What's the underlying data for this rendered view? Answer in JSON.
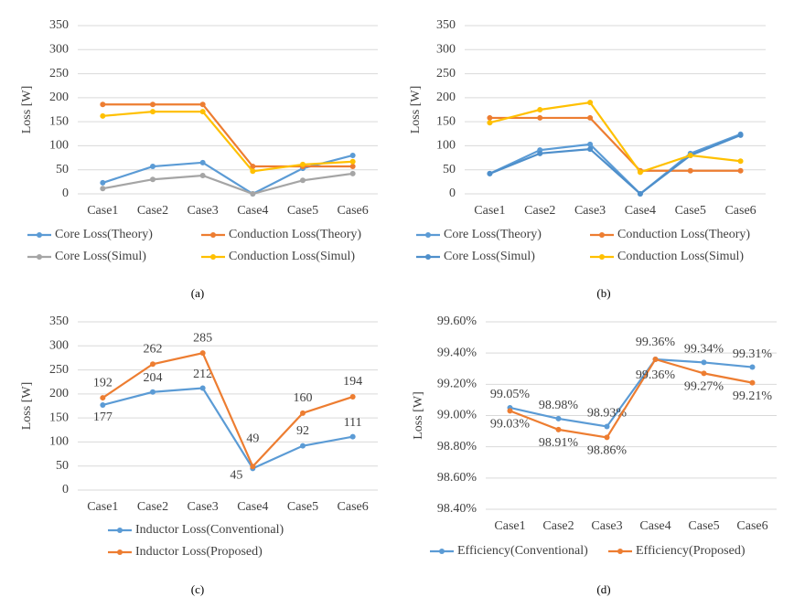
{
  "chart_data": [
    {
      "type": "line",
      "caption": "(a)",
      "y_label": "Loss [W]",
      "categories": [
        "Case1",
        "Case2",
        "Case3",
        "Case4",
        "Case5",
        "Case6"
      ],
      "ylim": [
        0,
        350
      ],
      "yticks": [
        0,
        50,
        100,
        150,
        200,
        250,
        300,
        350
      ],
      "grid": true,
      "series": [
        {
          "name": "Core Loss(Theory)",
          "color": "#5b9bd5",
          "values": [
            23,
            57,
            65,
            0,
            53,
            80
          ]
        },
        {
          "name": "Conduction Loss(Theory)",
          "color": "#ed7d31",
          "values": [
            186,
            186,
            186,
            57,
            57,
            57
          ]
        },
        {
          "name": "Core Loss(Simul)",
          "color": "#a5a5a5",
          "values": [
            11,
            30,
            38,
            0,
            28,
            42
          ]
        },
        {
          "name": "Conduction Loss(Simul)",
          "color": "#ffc000",
          "values": [
            162,
            171,
            171,
            47,
            61,
            67
          ]
        }
      ]
    },
    {
      "type": "line",
      "caption": "(b)",
      "y_label": "Loss [W]",
      "categories": [
        "Case1",
        "Case2",
        "Case3",
        "Case4",
        "Case5",
        "Case6"
      ],
      "ylim": [
        0,
        350
      ],
      "yticks": [
        0,
        50,
        100,
        150,
        200,
        250,
        300,
        350
      ],
      "grid": true,
      "series": [
        {
          "name": "Core Loss(Theory)",
          "color": "#5b9bd5",
          "values": [
            42,
            91,
            103,
            0,
            84,
            124
          ]
        },
        {
          "name": "Conduction Loss(Theory)",
          "color": "#ed7d31",
          "values": [
            158,
            158,
            158,
            48,
            48,
            48
          ]
        },
        {
          "name": "Core Loss(Simul)",
          "color": "#4e8fcb",
          "values": [
            42,
            84,
            93,
            0,
            80,
            122
          ]
        },
        {
          "name": "Conduction Loss(Simul)",
          "color": "#ffc000",
          "values": [
            148,
            175,
            190,
            45,
            80,
            68
          ]
        }
      ]
    },
    {
      "type": "line",
      "caption": "(c)",
      "y_label": "Loss [W]",
      "categories": [
        "Case1",
        "Case2",
        "Case3",
        "Case4",
        "Case5",
        "Case6"
      ],
      "ylim": [
        0,
        350
      ],
      "yticks": [
        0,
        50,
        100,
        150,
        200,
        250,
        300,
        350
      ],
      "grid": true,
      "series": [
        {
          "name": "Inductor Loss(Conventional)",
          "color": "#5b9bd5",
          "values": [
            177,
            204,
            212,
            45,
            92,
            111
          ]
        },
        {
          "name": "Inductor Loss(Proposed)",
          "color": "#ed7d31",
          "values": [
            192,
            262,
            285,
            49,
            160,
            194
          ]
        }
      ]
    },
    {
      "type": "line",
      "caption": "(d)",
      "y_label": "Loss [W]",
      "categories": [
        "Case1",
        "Case2",
        "Case3",
        "Case4",
        "Case5",
        "Case6"
      ],
      "ylim": [
        98.4,
        99.6
      ],
      "yticks": [
        {
          "value": 98.4,
          "label": "98.40%"
        },
        {
          "value": 98.6,
          "label": "98.60%"
        },
        {
          "value": 98.8,
          "label": "98.80%"
        },
        {
          "value": 99.0,
          "label": "99.00%"
        },
        {
          "value": 99.2,
          "label": "99.20%"
        },
        {
          "value": 99.4,
          "label": "99.40%"
        },
        {
          "value": 99.6,
          "label": "99.60%"
        }
      ],
      "grid": true,
      "series": [
        {
          "name": "Efficiency(Conventional)",
          "color": "#5b9bd5",
          "values": [
            99.05,
            98.98,
            98.93,
            99.36,
            99.34,
            99.31
          ],
          "value_labels": [
            "99.05%",
            "98.98%",
            "98.93%",
            "99.36%",
            "99.34%",
            "99.31%"
          ]
        },
        {
          "name": "Efficiency(Proposed)",
          "color": "#ed7d31",
          "values": [
            99.03,
            98.91,
            98.86,
            99.36,
            99.27,
            99.21
          ],
          "value_labels": [
            "99.03%",
            "98.91%",
            "98.86%",
            "99.36%",
            "99.27%",
            "99.21%"
          ]
        }
      ]
    }
  ]
}
